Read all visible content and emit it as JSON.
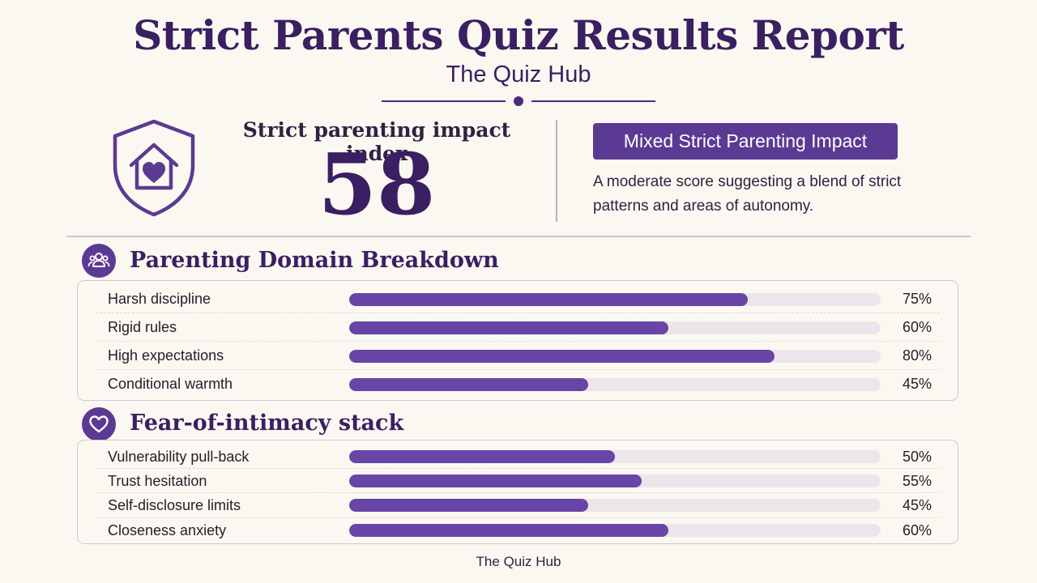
{
  "report": {
    "title": "Strict Parents Quiz Results Report",
    "subtitle": "The Quiz Hub"
  },
  "index": {
    "label": "Strict parenting impact index",
    "value": "58",
    "icon": "shield-home-heart-icon"
  },
  "result": {
    "badge": "Mixed Strict Parenting Impact",
    "description": "A moderate score suggesting a blend of strict patterns and areas of autonomy."
  },
  "domain_section": {
    "title": "Parenting Domain Breakdown",
    "icon": "people-group-icon",
    "rows": [
      {
        "label": "Harsh discipline",
        "value": 75,
        "display": "75%"
      },
      {
        "label": "Rigid rules",
        "value": 60,
        "display": "60%"
      },
      {
        "label": "High expectations",
        "value": 80,
        "display": "80%"
      },
      {
        "label": "Conditional warmth",
        "value": 45,
        "display": "45%"
      }
    ]
  },
  "intimacy_section": {
    "title": "Fear-of-intimacy stack",
    "icon": "heart-icon",
    "rows": [
      {
        "label": "Vulnerability pull-back",
        "value": 50,
        "display": "50%"
      },
      {
        "label": "Trust hesitation",
        "value": 55,
        "display": "55%"
      },
      {
        "label": "Self-disclosure limits",
        "value": 45,
        "display": "45%"
      },
      {
        "label": "Closeness anxiety",
        "value": 60,
        "display": "60%"
      }
    ]
  },
  "footer": {
    "text": "The Quiz Hub"
  },
  "colors": {
    "accent": "#5b3a93",
    "bar_fill": "#6845a6",
    "bar_track": "#ece6ec",
    "title": "#3a1f63",
    "background": "#fbf8f1"
  }
}
